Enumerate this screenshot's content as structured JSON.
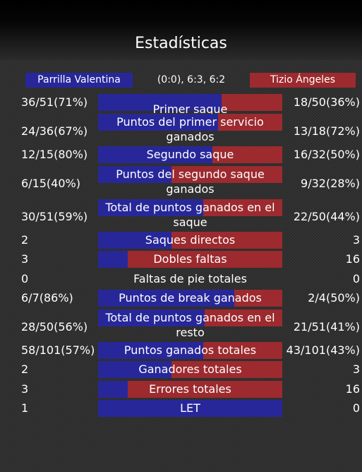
{
  "title": "Estadísticas",
  "players": {
    "left": "Parrilla Valentina",
    "right": "Tizio Ángeles",
    "score": "(0:0), 6:3, 6:2"
  },
  "colors": {
    "left_player": "#27279a",
    "right_player": "#9c2a2e"
  },
  "stats": [
    {
      "label": "Primer saque",
      "left": "36/51(71%)",
      "right": "18/50(36%)",
      "left_share": 0.67
    },
    {
      "label": "Puntos del primer servicio ganados",
      "left": "24/36(67%)",
      "right": "13/18(72%)",
      "left_share": 0.65
    },
    {
      "label": "Segundo saque",
      "left": "12/15(80%)",
      "right": "16/32(50%)",
      "left_share": 0.62
    },
    {
      "label": "Puntos del segundo saque ganados",
      "left": "6/15(40%)",
      "right": "9/32(28%)",
      "left_share": 0.4
    },
    {
      "label": "Total de puntos ganados en el saque",
      "left": "30/51(59%)",
      "right": "22/50(44%)",
      "left_share": 0.57
    },
    {
      "label": "Saques directos",
      "left": "2",
      "right": "3",
      "left_share": 0.4
    },
    {
      "label": "Dobles faltas",
      "left": "3",
      "right": "16",
      "left_share": 0.16
    },
    {
      "label": "Faltas de pie totales",
      "left": "0",
      "right": "0",
      "left_share": null
    },
    {
      "label": "Puntos de break ganados",
      "left": "6/7(86%)",
      "right": "2/4(50%)",
      "left_share": 0.74
    },
    {
      "label": "Total de puntos ganados en el resto",
      "left": "28/50(56%)",
      "right": "21/51(41%)",
      "left_share": 0.58
    },
    {
      "label": "Puntos ganados totales",
      "left": "58/101(57%)",
      "right": "43/101(43%)",
      "left_share": 0.57
    },
    {
      "label": "Ganadores totales",
      "left": "2",
      "right": "3",
      "left_share": 0.4
    },
    {
      "label": "Errores totales",
      "left": "3",
      "right": "16",
      "left_share": 0.16
    },
    {
      "label": "LET",
      "left": "1",
      "right": "0",
      "left_share": 1.0
    }
  ]
}
